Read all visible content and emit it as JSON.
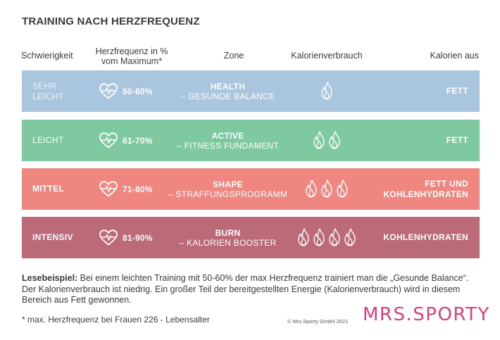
{
  "title": "TRAINING NACH HERZFREQUENZ",
  "headers": {
    "schwierigkeit": "Schwierigkeit",
    "herzfrequenz_line1": "Herzfrequenz in %",
    "herzfrequenz_line2": "vom Maximum*",
    "zone": "Zone",
    "kalorienverbrauch": "Kalorienverbrauch",
    "kalorien_aus": "Kalorien aus"
  },
  "rows": [
    {
      "level_line1": "SEHR",
      "level_line2": "LEICHT",
      "percent": "50-60%",
      "zone_name": "HEALTH",
      "zone_desc": "– GESUNDE BALANCE",
      "flames": 1,
      "source_line1": "FETT",
      "source_line2": "",
      "color": "#a9c6de"
    },
    {
      "level_line1": "LEICHT",
      "level_line2": "",
      "percent": "61-70%",
      "zone_name": "ACTIVE",
      "zone_desc": "– FITNESS FUNDAMENT",
      "flames": 2,
      "source_line1": "FETT",
      "source_line2": "",
      "color": "#7fc9a0"
    },
    {
      "level_line1": "MITTEL",
      "level_line2": "",
      "percent": "71-80%",
      "zone_name": "SHAPE",
      "zone_desc": "– STRAFFUNGSPROGRAMM",
      "flames": 3,
      "source_line1": "FETT UND",
      "source_line2": "KOHLENHYDRATEN",
      "color": "#ef8680"
    },
    {
      "level_line1": "INTENSIV",
      "level_line2": "",
      "percent": "81-90%",
      "zone_name": "BURN",
      "zone_desc": "– KALORIEN BOOSTER",
      "flames": 4,
      "source_line1": "KOHLENHYDRATEN",
      "source_line2": "",
      "color": "#bc6a78"
    }
  ],
  "note": {
    "label": "Lesebeispiel:",
    "text": " Bei einem leichten Training mit 50-60% der max Herzfrequenz trainiert man die „Gesunde Balance“. Der Kalorienverbrauch ist niedrig. Ein großer Teil der bereitgestellten Energie (Kalorienverbrauch) wird in diesem Bereich aus Fett gewonnen."
  },
  "footnote": "* max. Herzfrequenz bei Frauen 226 - Lebensalter",
  "copyright": "© Mrs.Sporty GmbH 2021",
  "logo": "MRS.SPORTY",
  "icons": {
    "heart": "heart-pulse-icon",
    "flame": "flame-icon"
  }
}
